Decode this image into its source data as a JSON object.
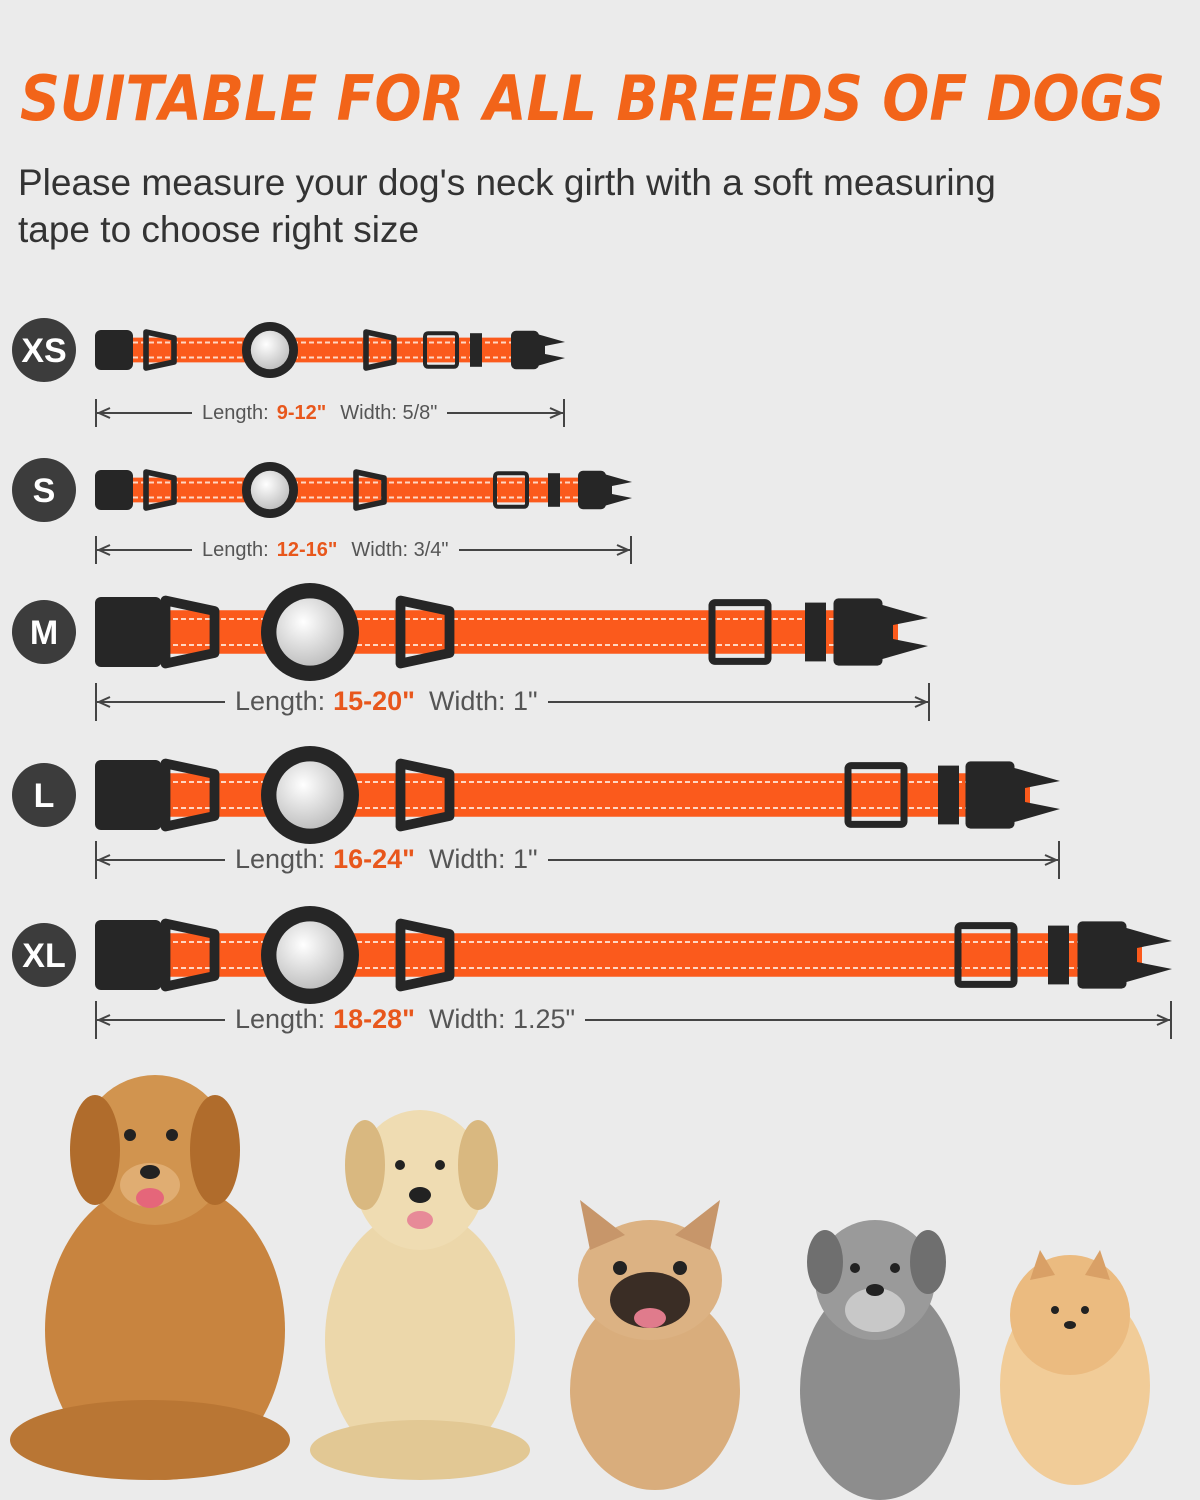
{
  "header": {
    "title": "SUITABLE FOR ALL BREEDS OF DOGS",
    "subtitle_lines": [
      "Please measure your dog's neck girth with a soft measuring",
      "tape to choose right size"
    ]
  },
  "sizes": [
    {
      "label": "XS",
      "length_label": "Length:",
      "length": "9-12\"",
      "width": "Width: 5/8\""
    },
    {
      "label": "S",
      "length_label": "Length:",
      "length": "12-16\"",
      "width": "Width: 3/4\""
    },
    {
      "label": "M",
      "length_label": "Length:",
      "length": "15-20\"",
      "width": "Width: 1\""
    },
    {
      "label": "L",
      "length_label": "Length:",
      "length": "16-24\"",
      "width": "Width: 1\""
    },
    {
      "label": "XL",
      "length_label": "Length:",
      "length": "18-28\"",
      "width": "Width: 1.25\""
    }
  ]
}
